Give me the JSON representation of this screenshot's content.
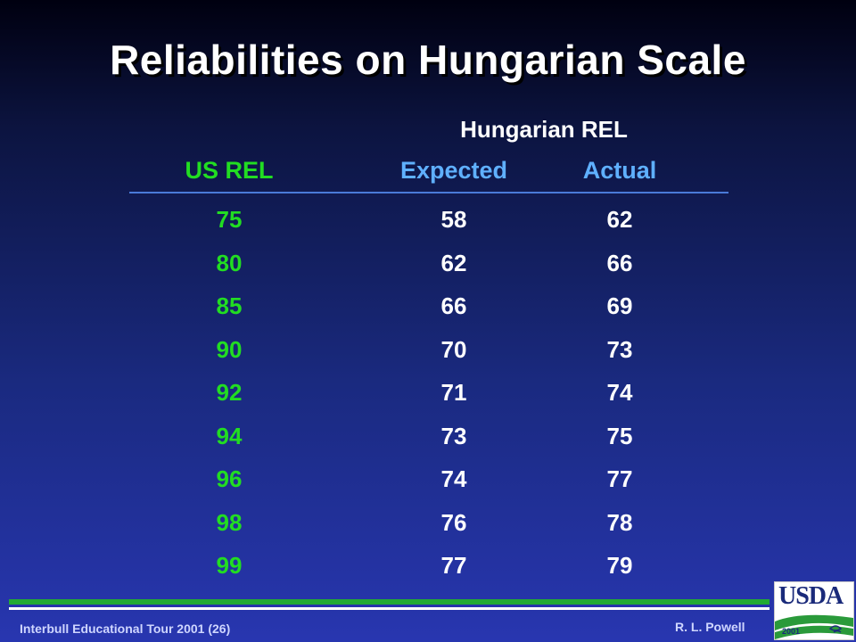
{
  "title": "Reliabilities on Hungarian Scale",
  "table": {
    "group_header": "Hungarian REL",
    "columns": {
      "us": "US REL",
      "expected": "Expected",
      "actual": "Actual"
    },
    "rows": [
      {
        "us": "75",
        "expected": "58",
        "actual": "62"
      },
      {
        "us": "80",
        "expected": "62",
        "actual": "66"
      },
      {
        "us": "85",
        "expected": "66",
        "actual": "69"
      },
      {
        "us": "90",
        "expected": "70",
        "actual": "73"
      },
      {
        "us": "92",
        "expected": "71",
        "actual": "74"
      },
      {
        "us": "94",
        "expected": "73",
        "actual": "75"
      },
      {
        "us": "96",
        "expected": "74",
        "actual": "77"
      },
      {
        "us": "98",
        "expected": "76",
        "actual": "78"
      },
      {
        "us": "99",
        "expected": "77",
        "actual": "79"
      }
    ]
  },
  "footer": {
    "left": "Interbull Educational Tour 2001 (26)",
    "right": "R. L. Powell"
  },
  "logo": {
    "text": "USDA",
    "year": "2001"
  },
  "colors": {
    "us_column": "#22dd22",
    "header_blue": "#5fb0ff",
    "values": "#ffffff",
    "green_rule": "#22aa33"
  }
}
